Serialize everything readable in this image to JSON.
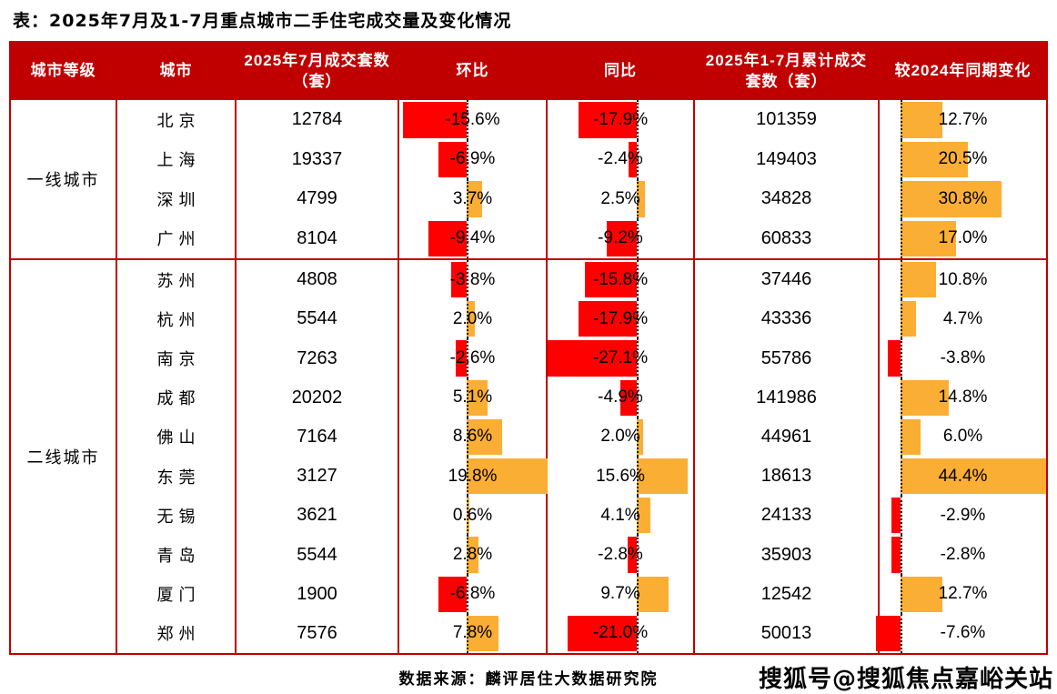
{
  "title": "表：2025年7月及1-7月重点城市二手住宅成交量及变化情况",
  "chart_data": {
    "type": "table",
    "columns": [
      "城市等级",
      "城市",
      "2025年7月成交套数（套）",
      "环比",
      "同比",
      "2025年1-7月累计成交套数（套）",
      "较2024年同期变化"
    ],
    "bar_columns_note": "环比 / 同比 / 较2024年同期变化 are percent values drawn as data bars: red=negative, orange=positive",
    "groups": [
      {
        "tier": "一线城市",
        "rows": [
          {
            "city": "北京",
            "jul_units": "12784",
            "mom": -15.6,
            "yoy": -17.9,
            "cum_units": "101359",
            "vs2024": 12.7
          },
          {
            "city": "上海",
            "jul_units": "19337",
            "mom": -6.9,
            "yoy": -2.4,
            "cum_units": "149403",
            "vs2024": 20.5
          },
          {
            "city": "深圳",
            "jul_units": "4799",
            "mom": 3.7,
            "yoy": 2.5,
            "cum_units": "34828",
            "vs2024": 30.8
          },
          {
            "city": "广州",
            "jul_units": "8104",
            "mom": -9.4,
            "yoy": -9.2,
            "cum_units": "60833",
            "vs2024": 17.0
          }
        ]
      },
      {
        "tier": "二线城市",
        "rows": [
          {
            "city": "苏州",
            "jul_units": "4808",
            "mom": -3.8,
            "yoy": -15.8,
            "cum_units": "37446",
            "vs2024": 10.8
          },
          {
            "city": "杭州",
            "jul_units": "5544",
            "mom": 2.0,
            "yoy": -17.9,
            "cum_units": "43336",
            "vs2024": 4.7
          },
          {
            "city": "南京",
            "jul_units": "7263",
            "mom": -2.6,
            "yoy": -27.1,
            "cum_units": "55786",
            "vs2024": -3.8
          },
          {
            "city": "成都",
            "jul_units": "20202",
            "mom": 5.1,
            "yoy": -4.9,
            "cum_units": "141986",
            "vs2024": 14.8
          },
          {
            "city": "佛山",
            "jul_units": "7164",
            "mom": 8.6,
            "yoy": 2.0,
            "cum_units": "44961",
            "vs2024": 6.0
          },
          {
            "city": "东莞",
            "jul_units": "3127",
            "mom": 19.8,
            "yoy": 15.6,
            "cum_units": "18613",
            "vs2024": 44.4
          },
          {
            "city": "无锡",
            "jul_units": "3621",
            "mom": 0.6,
            "yoy": 4.1,
            "cum_units": "24133",
            "vs2024": -2.9
          },
          {
            "city": "青岛",
            "jul_units": "5544",
            "mom": 2.8,
            "yoy": -2.8,
            "cum_units": "35903",
            "vs2024": -2.8
          },
          {
            "city": "厦门",
            "jul_units": "1900",
            "mom": -6.8,
            "yoy": 9.7,
            "cum_units": "12542",
            "vs2024": 12.7
          },
          {
            "city": "郑州",
            "jul_units": "7576",
            "mom": 7.8,
            "yoy": -21.0,
            "cum_units": "50013",
            "vs2024": -7.6
          }
        ]
      }
    ]
  },
  "footer": {
    "source": "数据来源：麟评居住大数据研究院"
  },
  "watermark": "搜狐号@搜狐焦点嘉峪关站",
  "colors": {
    "header_bg": "#c00000",
    "border": "#c00000",
    "negative_bar": "#fe0000",
    "positive_bar": "#fbae34"
  }
}
